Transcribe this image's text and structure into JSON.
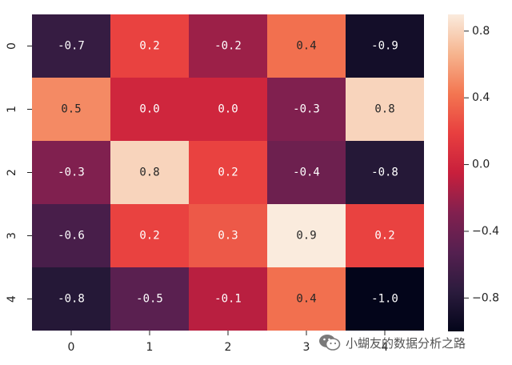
{
  "chart_data": {
    "type": "heatmap",
    "x_tick_labels": [
      "0",
      "1",
      "2",
      "3",
      "4"
    ],
    "y_tick_labels": [
      "0",
      "1",
      "2",
      "3",
      "4"
    ],
    "values": [
      [
        -0.7,
        0.2,
        -0.2,
        0.4,
        -0.9
      ],
      [
        0.5,
        0.0,
        0.0,
        -0.3,
        0.8
      ],
      [
        -0.3,
        0.8,
        0.2,
        -0.4,
        -0.8
      ],
      [
        -0.6,
        0.2,
        0.3,
        0.9,
        0.2
      ],
      [
        -0.8,
        -0.5,
        -0.1,
        0.4,
        -1.0
      ]
    ],
    "cell_labels": [
      [
        "-0.7",
        "0.2",
        "-0.2",
        "0.4",
        "-0.9"
      ],
      [
        "0.5",
        "0.0",
        "0.0",
        "-0.3",
        "0.8"
      ],
      [
        "-0.3",
        "0.8",
        "0.2",
        "-0.4",
        "-0.8"
      ],
      [
        "-0.6",
        "0.2",
        "0.3",
        "0.9",
        "0.2"
      ],
      [
        "-0.8",
        "-0.5",
        "-0.1",
        "0.4",
        "-1.0"
      ]
    ],
    "colorbar": {
      "vmin": -1.0,
      "vmax": 0.9,
      "ticks": [
        0.8,
        0.4,
        0.0,
        -0.4,
        -0.8
      ],
      "tick_labels": [
        "0.8",
        "0.4",
        "0.0",
        "−0.4",
        "−0.8"
      ]
    },
    "colormap": "rocket",
    "title": "",
    "xlabel": "",
    "ylabel": ""
  },
  "watermark": {
    "text": "小蝴友的数据分析之路",
    "icon": "wechat-icon"
  }
}
